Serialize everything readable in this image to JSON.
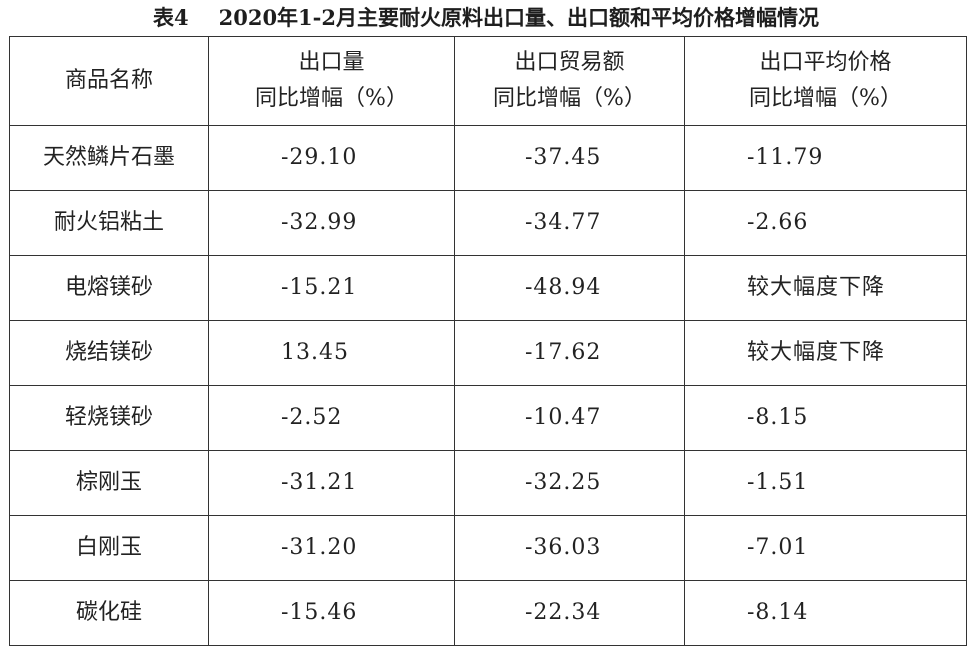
{
  "title": {
    "table_no": "表4",
    "text": "2020年1-2月主要耐火原料出口量、出口额和平均价格增幅情况"
  },
  "table": {
    "headers": [
      {
        "line1": "商品名称",
        "line2": ""
      },
      {
        "line1": "出口量",
        "line2": "同比增幅（%）"
      },
      {
        "line1": "出口贸易额",
        "line2": "同比增幅（%）"
      },
      {
        "line1": "出口平均价格",
        "line2": "同比增幅（%）"
      }
    ],
    "rows": [
      {
        "name": "天然鳞片石墨",
        "volume": "-29.10",
        "value": "-37.45",
        "price": "-11.79"
      },
      {
        "name": "耐火铝粘土",
        "volume": "-32.99",
        "value": "-34.77",
        "price": "-2.66"
      },
      {
        "name": "电熔镁砂",
        "volume": "-15.21",
        "value": "-48.94",
        "price": "较大幅度下降"
      },
      {
        "name": "烧结镁砂",
        "volume": "13.45",
        "value": "-17.62",
        "price": "较大幅度下降"
      },
      {
        "name": "轻烧镁砂",
        "volume": "-2.52",
        "value": "-10.47",
        "price": "-8.15"
      },
      {
        "name": "棕刚玉",
        "volume": "-31.21",
        "value": "-32.25",
        "price": "-1.51"
      },
      {
        "name": "白刚玉",
        "volume": "-31.20",
        "value": "-36.03",
        "price": "-7.01"
      },
      {
        "name": "碳化硅",
        "volume": "-15.46",
        "value": "-22.34",
        "price": "-8.14"
      }
    ]
  }
}
